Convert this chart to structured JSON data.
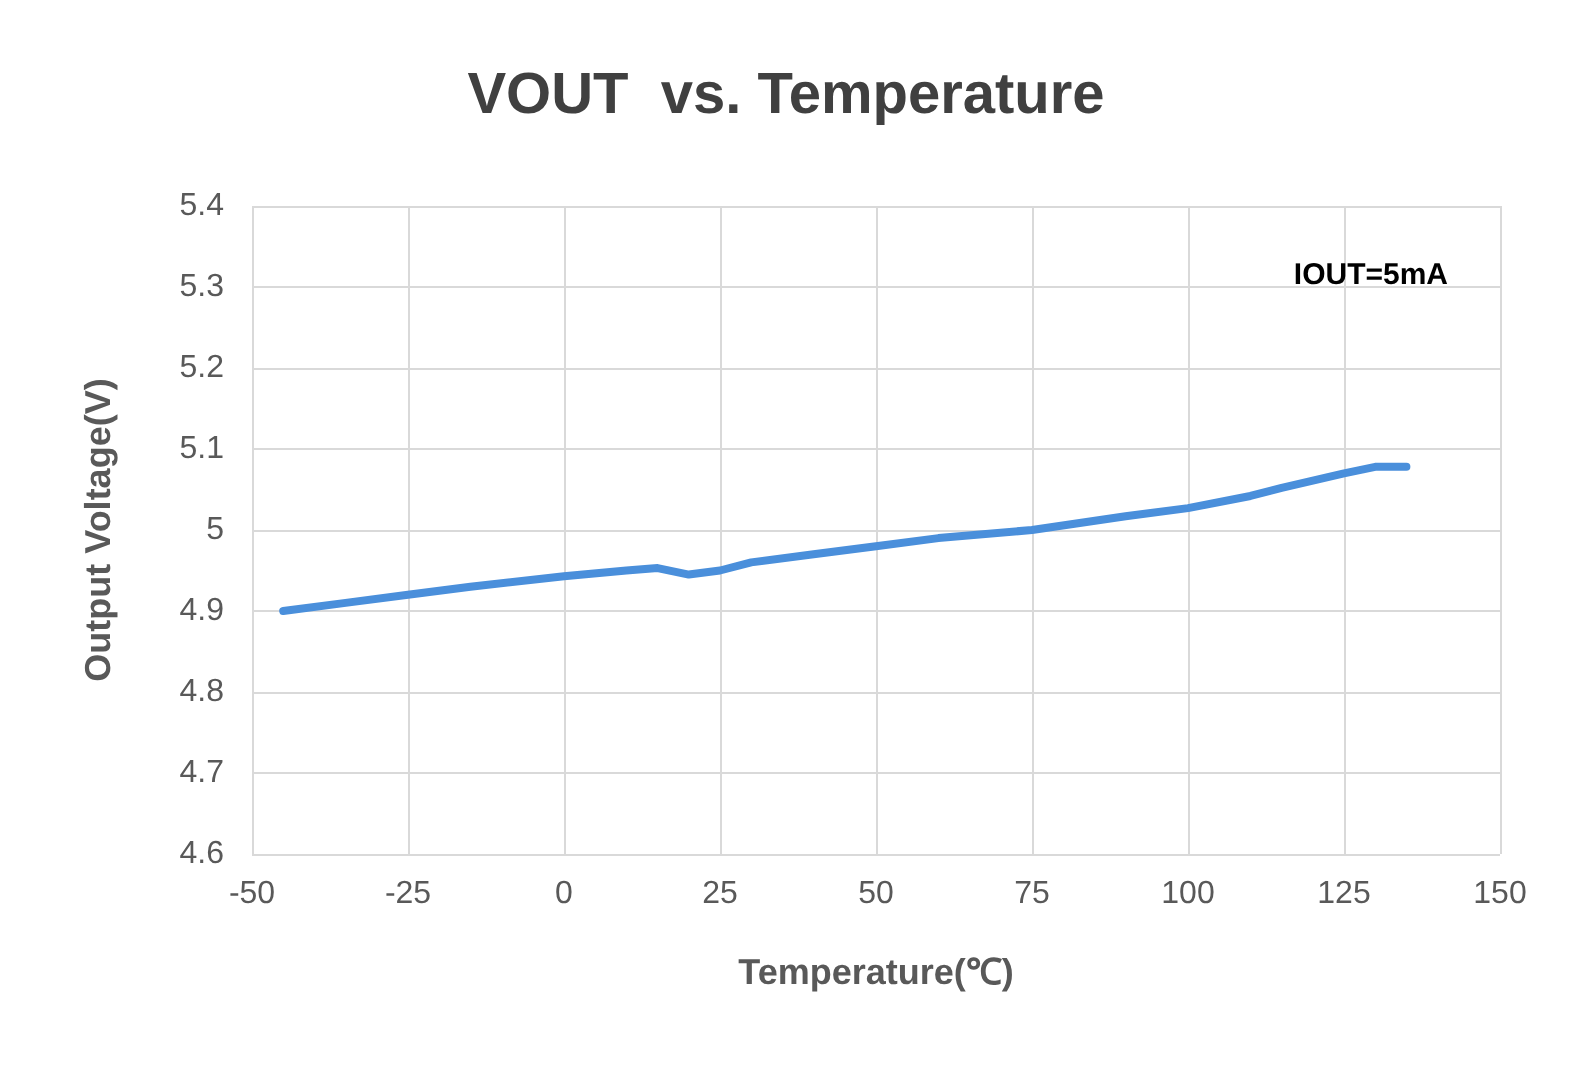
{
  "chart_data": {
    "type": "line",
    "title": "VOUT  vs. Temperature",
    "xlabel": "Temperature(℃)",
    "ylabel": "Output Voltage(V)",
    "annotations": [
      "IOUT=5mA"
    ],
    "series": [
      {
        "color": "#4a8fdb",
        "x": [
          -45,
          -35,
          -25,
          -15,
          0,
          10,
          15,
          20,
          25,
          30,
          40,
          50,
          60,
          75,
          90,
          100,
          110,
          115,
          125,
          130,
          135
        ],
        "values": [
          4.9,
          4.91,
          4.92,
          4.93,
          4.943,
          4.95,
          4.953,
          4.945,
          4.95,
          4.96,
          4.97,
          4.98,
          4.99,
          5.0,
          5.017,
          5.027,
          5.042,
          5.052,
          5.07,
          5.078,
          5.078
        ]
      }
    ],
    "xlim": [
      -50,
      150
    ],
    "xticks": [
      -50,
      -25,
      0,
      25,
      50,
      75,
      100,
      125,
      150
    ],
    "ylim": [
      4.6,
      5.4
    ],
    "yticks": [
      4.6,
      4.7,
      4.8,
      4.9,
      5,
      5.1,
      5.2,
      5.3,
      5.4
    ],
    "grid": true,
    "marker": "none",
    "line_style": "solid"
  }
}
